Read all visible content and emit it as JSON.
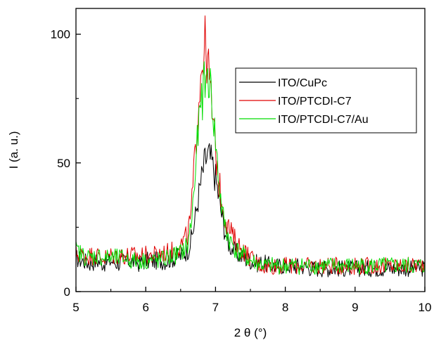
{
  "chart_data": {
    "type": "line",
    "title": "",
    "xlabel": "2 θ (°)",
    "ylabel": "I (a. u.)",
    "xlim": [
      5,
      10
    ],
    "ylim": [
      0,
      110
    ],
    "x_ticks": [
      5,
      6,
      7,
      8,
      9,
      10
    ],
    "x_tick_labels": [
      "5",
      "6",
      "7",
      "8",
      "9",
      "10"
    ],
    "y_ticks": [
      0,
      50,
      100
    ],
    "y_tick_labels": [
      "0",
      "50",
      "100"
    ],
    "grid": false,
    "legend_position": "top-right",
    "series": [
      {
        "name": "ITO/CuPc",
        "color": "#000000",
        "x": [
          5.0,
          5.1,
          5.2,
          5.3,
          5.4,
          5.5,
          5.6,
          5.7,
          5.8,
          5.9,
          6.0,
          6.1,
          6.2,
          6.3,
          6.4,
          6.5,
          6.6,
          6.65,
          6.7,
          6.75,
          6.8,
          6.85,
          6.9,
          6.95,
          7.0,
          7.05,
          7.1,
          7.15,
          7.2,
          7.3,
          7.4,
          7.5,
          7.6,
          7.7,
          7.8,
          7.9,
          8.0,
          8.2,
          8.4,
          8.6,
          8.8,
          9.0,
          9.2,
          9.4,
          9.6,
          9.8,
          10.0
        ],
        "y": [
          13,
          12,
          11,
          12,
          11,
          12,
          11,
          12,
          12,
          11,
          12,
          12,
          12,
          12,
          13,
          14,
          16,
          20,
          27,
          36,
          44,
          51,
          53,
          50,
          44,
          36,
          28,
          22,
          18,
          15,
          13,
          12,
          11,
          11,
          10,
          10,
          10,
          10,
          9,
          9,
          9,
          9,
          9,
          9,
          9,
          9,
          9
        ]
      },
      {
        "name": "ITO/PTCDI-C7",
        "color": "#e00000",
        "x": [
          5.0,
          5.1,
          5.2,
          5.3,
          5.4,
          5.5,
          5.6,
          5.7,
          5.8,
          5.9,
          6.0,
          6.1,
          6.2,
          6.3,
          6.4,
          6.5,
          6.6,
          6.65,
          6.7,
          6.75,
          6.8,
          6.85,
          6.9,
          6.95,
          7.0,
          7.05,
          7.1,
          7.15,
          7.2,
          7.3,
          7.4,
          7.5,
          7.6,
          7.7,
          7.8,
          7.9,
          8.0,
          8.2,
          8.4,
          8.6,
          8.8,
          9.0,
          9.2,
          9.4,
          9.6,
          9.8,
          10.0
        ],
        "y": [
          15,
          14,
          14,
          14,
          13,
          14,
          14,
          14,
          14,
          14,
          14,
          14,
          15,
          15,
          16,
          18,
          22,
          30,
          50,
          72,
          88,
          96,
          86,
          70,
          55,
          42,
          34,
          28,
          24,
          19,
          16,
          13,
          11,
          10,
          10,
          10,
          10,
          10,
          10,
          10,
          10,
          10,
          10,
          10,
          10,
          10,
          11
        ]
      },
      {
        "name": "ITO/PTCDI-C7/Au",
        "color": "#00dd00",
        "x": [
          5.0,
          5.1,
          5.2,
          5.3,
          5.4,
          5.5,
          5.6,
          5.7,
          5.8,
          5.9,
          6.0,
          6.1,
          6.2,
          6.3,
          6.4,
          6.5,
          6.6,
          6.65,
          6.7,
          6.75,
          6.8,
          6.85,
          6.9,
          6.95,
          7.0,
          7.05,
          7.1,
          7.15,
          7.2,
          7.3,
          7.4,
          7.5,
          7.6,
          7.7,
          7.8,
          7.9,
          8.0,
          8.2,
          8.4,
          8.6,
          8.8,
          9.0,
          9.2,
          9.4,
          9.6,
          9.8,
          10.0
        ],
        "y": [
          16,
          14,
          13,
          14,
          13,
          13,
          13,
          13,
          12,
          12,
          12,
          12,
          12,
          13,
          14,
          15,
          18,
          26,
          42,
          62,
          74,
          82,
          84,
          74,
          58,
          42,
          30,
          24,
          20,
          16,
          14,
          12,
          11,
          10,
          10,
          10,
          10,
          10,
          10,
          10,
          10,
          10,
          10,
          10,
          10,
          10,
          10
        ]
      }
    ]
  }
}
